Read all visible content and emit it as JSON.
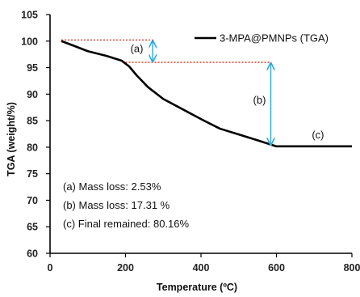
{
  "chart_data": {
    "type": "line",
    "xlabel": "Temperature (ºC)",
    "ylabel": "TGA (weight/%)",
    "xlim": [
      0,
      800
    ],
    "ylim": [
      60,
      105
    ],
    "x_ticks": [
      0,
      200,
      400,
      600,
      800
    ],
    "y_ticks": [
      60,
      65,
      70,
      75,
      80,
      85,
      90,
      95,
      100,
      105
    ],
    "grid": false,
    "legend_position": "top-right",
    "series": [
      {
        "name": "3-MPA@PMNPs (TGA)",
        "color": "#000000",
        "x": [
          30,
          60,
          100,
          150,
          190,
          210,
          230,
          260,
          300,
          350,
          400,
          450,
          500,
          550,
          600,
          650,
          700,
          750,
          800
        ],
        "y": [
          100,
          99.2,
          98.1,
          97.2,
          96.3,
          95.2,
          93.5,
          91.3,
          89.1,
          87.2,
          85.3,
          83.5,
          82.4,
          81.3,
          80.16,
          80.16,
          80.16,
          80.16,
          80.16
        ]
      }
    ],
    "reference_lines": [
      {
        "x_from": 30,
        "x_to": 275,
        "y": 100.2,
        "color": "#e0382e"
      },
      {
        "x_from": 200,
        "x_to": 585,
        "y": 96.0,
        "color": "#e0382e"
      }
    ],
    "annotations": [
      {
        "label": "(a)",
        "x": 230,
        "y": 98.5
      },
      {
        "label": "(b)",
        "x": 555,
        "y": 88.8
      },
      {
        "label": "(c)",
        "x": 710,
        "y": 82.3
      }
    ],
    "arrows": [
      {
        "x": 272,
        "y_from": 100.2,
        "y_to": 96.0,
        "color": "#2aa8e0"
      },
      {
        "x": 585,
        "y_from": 96.0,
        "y_to": 80.3,
        "color": "#2aa8e0"
      }
    ],
    "notes": [
      "(a) Mass loss: 2.53%",
      "(b) Mass loss: 17.31 %",
      "(c) Final remained: 80.16%"
    ]
  }
}
